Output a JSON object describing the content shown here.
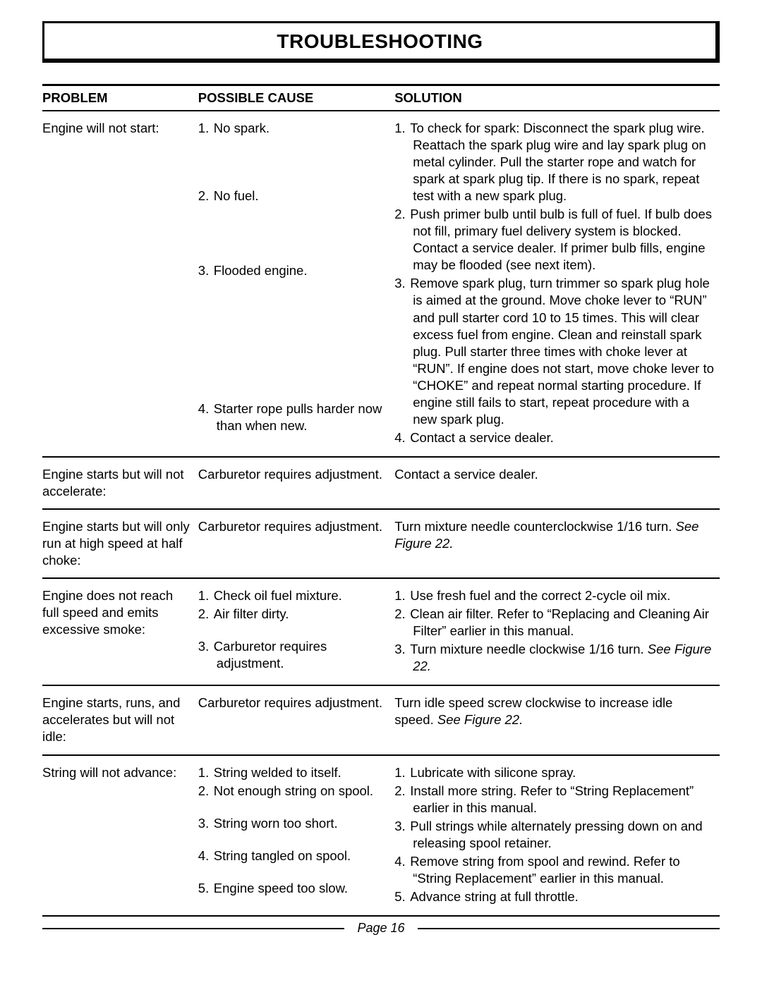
{
  "page": {
    "title": "TROUBLESHOOTING",
    "footer_label": "Page 16"
  },
  "headers": {
    "problem": "PROBLEM",
    "cause": "POSSIBLE CAUSE",
    "solution": "SOLUTION"
  },
  "rows": [
    {
      "problem": "Engine will not start:",
      "cause_type": "list",
      "causes": [
        "No spark.",
        "No fuel.",
        "Flooded engine.",
        "Starter rope pulls harder now than when new."
      ],
      "cause_gaps": [
        70,
        80,
        170,
        0
      ],
      "solution_type": "list",
      "solutions": [
        "To check for spark: Disconnect the spark plug wire. Reattach the spark plug wire and lay spark plug on metal cylinder. Pull the starter rope and watch for spark at spark plug tip. If there is no spark, repeat test with a new spark plug.",
        "Push primer bulb until bulb is full of fuel. If bulb does not fill, primary fuel delivery system is blocked. Contact a service dealer. If primer bulb fills, engine may be flooded (see next item).",
        "Remove spark plug, turn trimmer so spark plug hole is aimed at the ground. Move choke lever to “RUN” and pull starter cord 10 to 15 times. This will clear excess fuel from engine. Clean and reinstall spark plug. Pull starter three times with choke lever at “RUN”. If engine does not start, move choke lever to “CHOKE” and repeat normal starting procedure. If engine still fails to start, repeat procedure with a new spark plug.",
        "Contact a service dealer."
      ]
    },
    {
      "problem": "Engine starts but will not accelerate:",
      "cause_type": "plain",
      "cause_text": "Carburetor requires adjustment.",
      "solution_type": "plain",
      "solution_text": "Contact a service dealer."
    },
    {
      "problem": "Engine starts but will only run at high speed at half choke:",
      "cause_type": "plain",
      "cause_text": "Carburetor requires adjustment.",
      "solution_type": "plain_with_italic",
      "solution_text": "Turn mixture needle counterclockwise 1/16 turn. ",
      "solution_italic": "See Figure 22."
    },
    {
      "problem": "Engine does not reach full speed and emits excessive smoke:",
      "cause_type": "list",
      "causes": [
        "Check oil fuel mixture.",
        "Air filter dirty.",
        "Carburetor requires adjustment."
      ],
      "cause_gaps": [
        0,
        20,
        0
      ],
      "solution_type": "list",
      "solutions": [
        "Use fresh fuel and the correct 2-cycle oil mix.",
        "Clean air filter. Refer to “Replacing and Cleaning Air Filter” earlier in this manual.",
        "Turn mixture needle clockwise 1/16 turn. <span class=\"italic\">See Figure 22.</span>"
      ]
    },
    {
      "problem": "Engine starts, runs, and accelerates but will not idle:",
      "cause_type": "plain",
      "cause_text": "Carburetor requires adjustment.",
      "solution_type": "plain_with_italic",
      "solution_text": "Turn idle speed screw clockwise to increase idle speed. ",
      "solution_italic": "See Figure 22."
    },
    {
      "problem": "String will not advance:",
      "cause_type": "list",
      "causes": [
        "String welded to itself.",
        "Not enough string on spool.",
        "String worn too short.",
        "String tangled on spool.",
        "Engine speed too slow."
      ],
      "cause_gaps": [
        0,
        20,
        20,
        20,
        0
      ],
      "solution_type": "list",
      "solutions": [
        "Lubricate with silicone spray.",
        "Install more string. Refer to “String Replacement” earlier in this manual.",
        "Pull strings while alternately pressing down on and releasing spool retainer.",
        "Remove string from spool and rewind. Refer to “String Replacement” earlier in this manual.",
        "Advance string at full throttle."
      ]
    }
  ]
}
